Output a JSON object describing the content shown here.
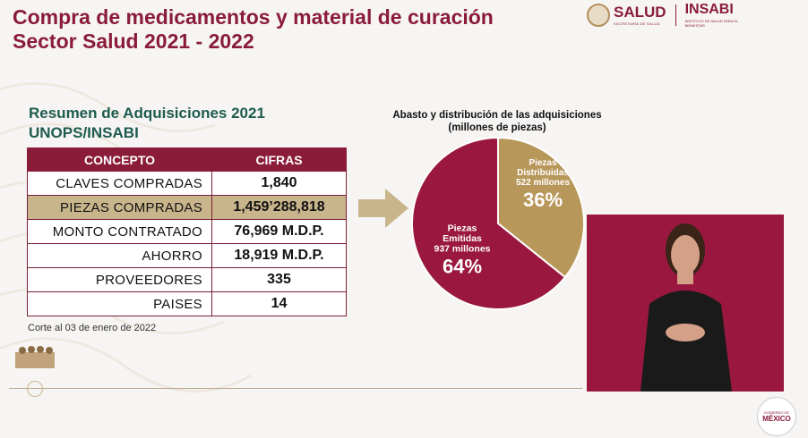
{
  "header": {
    "title_line1": "Compra de medicamentos y material de curación",
    "title_line2": "Sector Salud 2021 - 2022",
    "logo_salud": "SALUD",
    "logo_salud_sub": "SECRETARÍA DE SALUD",
    "logo_insabi": "INSABI",
    "logo_insabi_sub": "INSTITUTO DE SALUD PARA EL BIENESTAR"
  },
  "summary": {
    "heading_line1": "Resumen de Adquisiciones 2021",
    "heading_line2": "UNOPS/INSABI",
    "columns": [
      "CONCEPTO",
      "CIFRAS"
    ],
    "rows": [
      {
        "concept": "CLAVES COMPRADAS",
        "value": "1,840"
      },
      {
        "concept": "PIEZAS COMPRADAS",
        "value": "1,459’288,818"
      },
      {
        "concept": "MONTO CONTRATADO",
        "value": "76,969 M.D.P."
      },
      {
        "concept": "AHORRO",
        "value": "18,919 M.D.P."
      },
      {
        "concept": "PROVEEDORES",
        "value": "335"
      },
      {
        "concept": "PAISES",
        "value": "14"
      }
    ],
    "cutoff_note": "Corte al 03 de enero de 2022"
  },
  "chart_data": {
    "type": "pie",
    "title": "Abasto y distribución de las adquisiciones",
    "subtitle": "(millones de piezas)",
    "slices": [
      {
        "label_line1": "Piezas",
        "label_line2": "Emitidas",
        "label_line3": "937 millones",
        "value": 937,
        "percent": "64%",
        "color": "#9a1840"
      },
      {
        "label_line1": "Piezas",
        "label_line2": "Distribuidas",
        "label_line3": "522 millones",
        "value": 522,
        "percent": "36%",
        "color": "#b8975a"
      }
    ]
  },
  "footer": {
    "mexico_small": "GOBIERNO DE",
    "mexico_text": "MÉXICO"
  },
  "colors": {
    "brand": "#8a1c3a",
    "green": "#1e5b4f",
    "gold": "#b8975a",
    "highlight_row": "#c9b58c"
  }
}
